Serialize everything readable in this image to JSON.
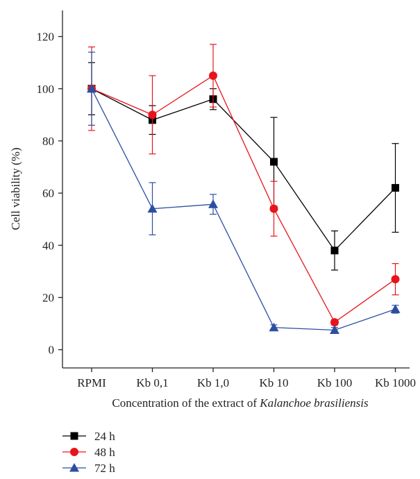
{
  "chart_data": {
    "type": "line",
    "title": "",
    "xlabel": {
      "prefix": "Concentration of the extract of ",
      "italic": "Kalanchoe brasiliensis"
    },
    "ylabel": "Cell viability (%)",
    "categories": [
      "RPMI",
      "Kb 0,1",
      "Kb 1,0",
      "Kb 10",
      "Kb 100",
      "Kb 1000"
    ],
    "ylim": [
      -7,
      130
    ],
    "yticks": [
      0,
      20,
      40,
      60,
      80,
      100,
      120
    ],
    "grid": false,
    "legend_position": "bottom-left",
    "series": [
      {
        "name": "24 h",
        "color": "#000000",
        "marker": "square",
        "values": [
          100,
          88,
          96,
          72,
          38,
          62
        ],
        "error": [
          10,
          5.5,
          4,
          17,
          7.5,
          17
        ]
      },
      {
        "name": "48 h",
        "color": "#e8141b",
        "marker": "circle",
        "values": [
          100,
          90,
          105,
          54,
          10.5,
          27
        ],
        "error": [
          16,
          15,
          12,
          10.5,
          1,
          6
        ]
      },
      {
        "name": "72 h",
        "color": "#2b4ea2",
        "marker": "triangle",
        "values": [
          100,
          54,
          55.7,
          8.5,
          7.5,
          15.5
        ],
        "error": [
          14,
          10,
          3.8,
          1,
          1,
          1.5
        ]
      }
    ]
  }
}
